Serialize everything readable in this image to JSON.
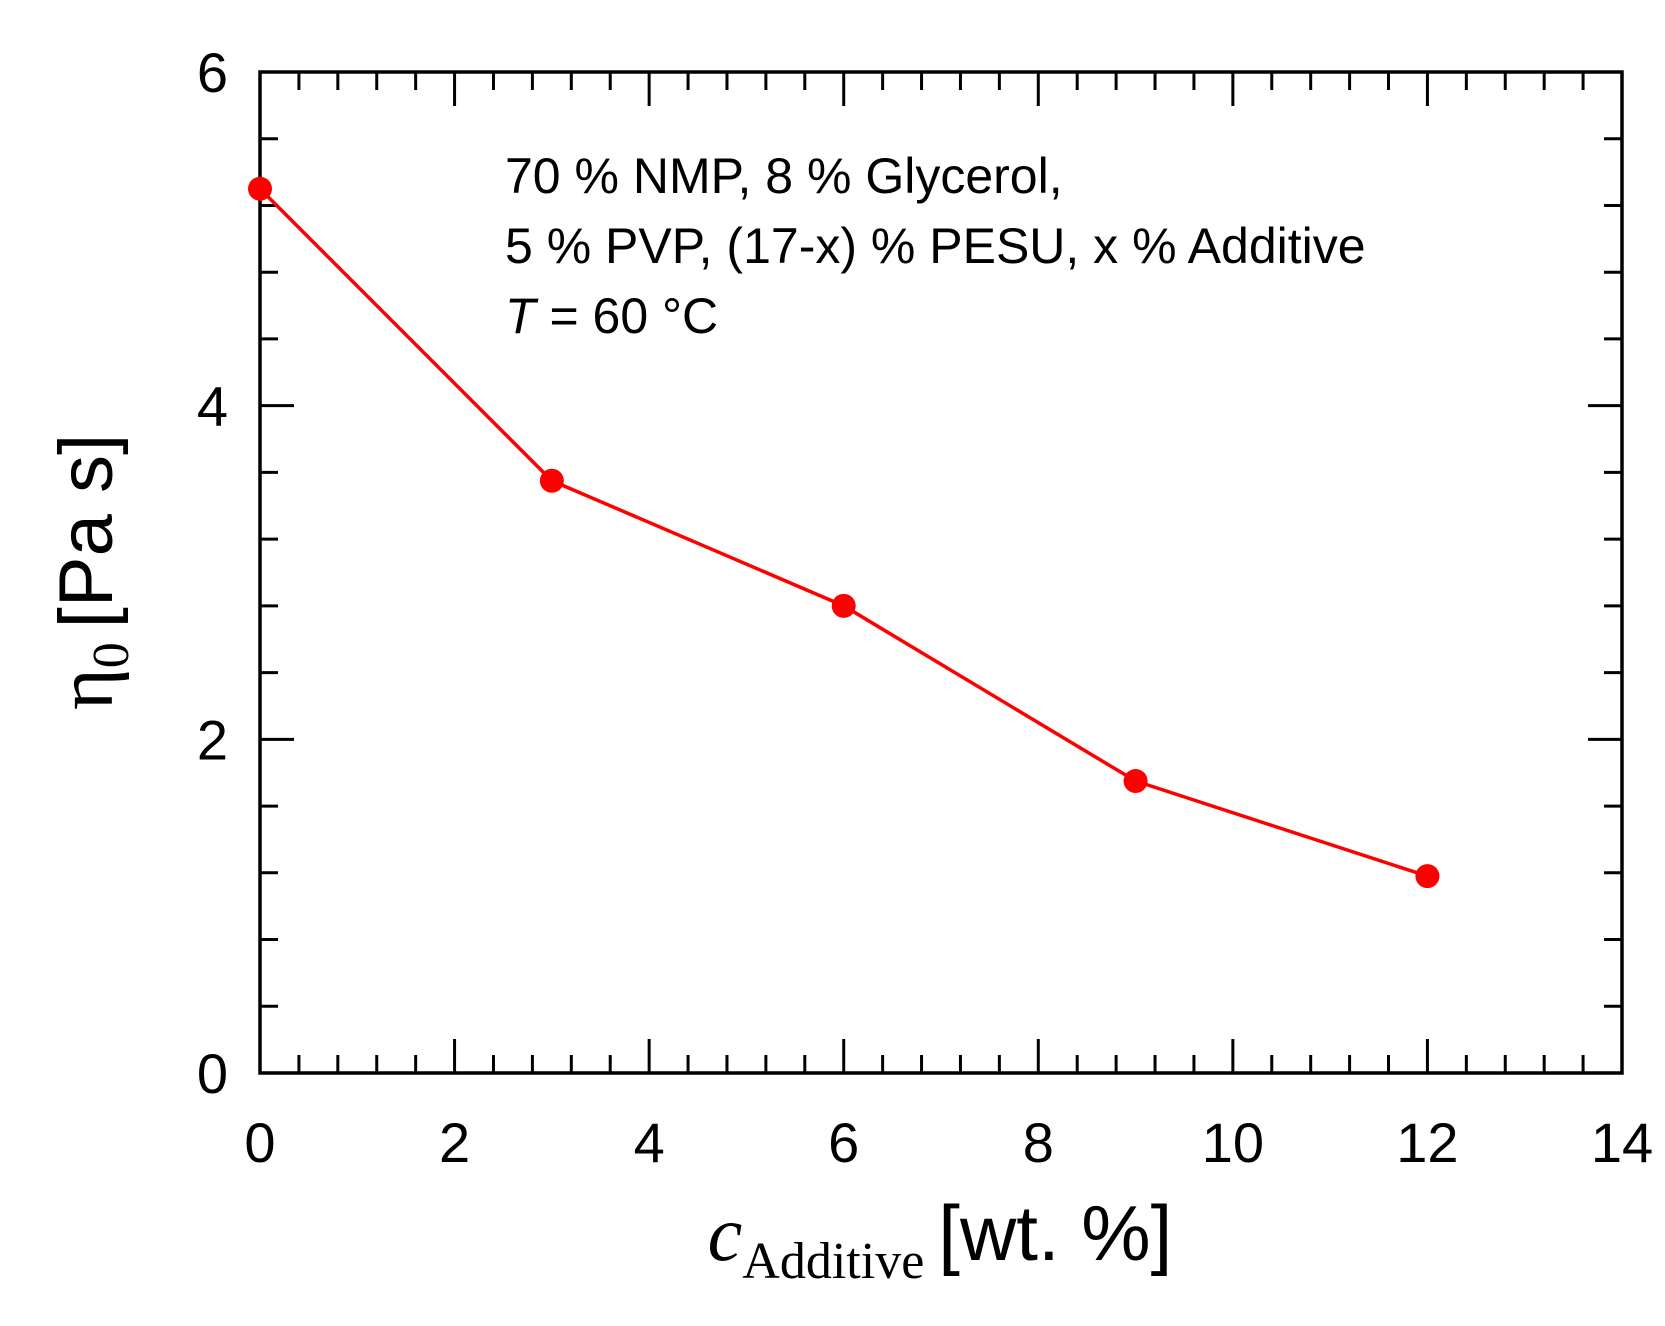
{
  "chart_data": {
    "type": "line",
    "series": [
      {
        "x": [
          0,
          3,
          6,
          9,
          12
        ],
        "y": [
          5.3,
          3.55,
          2.8,
          1.75,
          1.18
        ],
        "color": "#ff0000",
        "marker": "circle"
      }
    ],
    "xlim": [
      0,
      14
    ],
    "ylim": [
      0,
      6
    ],
    "x_ticks": [
      0,
      2,
      4,
      6,
      8,
      10,
      12,
      14
    ],
    "y_ticks": [
      0,
      2,
      4,
      6
    ],
    "x_tick_labels": [
      "0",
      "2",
      "4",
      "6",
      "8",
      "10",
      "12",
      "14"
    ],
    "y_tick_labels": [
      "0",
      "2",
      "4",
      "6"
    ],
    "x_minor_step": 0.4,
    "y_minor_step": 0.4,
    "xlabel": {
      "symbol": "c",
      "subscript": "Additive",
      "unit": "[wt. %]"
    },
    "ylabel": {
      "symbol": "η",
      "subscript": "0",
      "unit": "[Pa s]"
    },
    "annotation": {
      "line1": "70 % NMP, 8 % Glycerol,",
      "line2": "5 % PVP, (17-x) % PESU, x % Additive",
      "line3_var": "T",
      "line3_rest": " = 60 °C"
    },
    "grid": false,
    "legend": "none"
  }
}
